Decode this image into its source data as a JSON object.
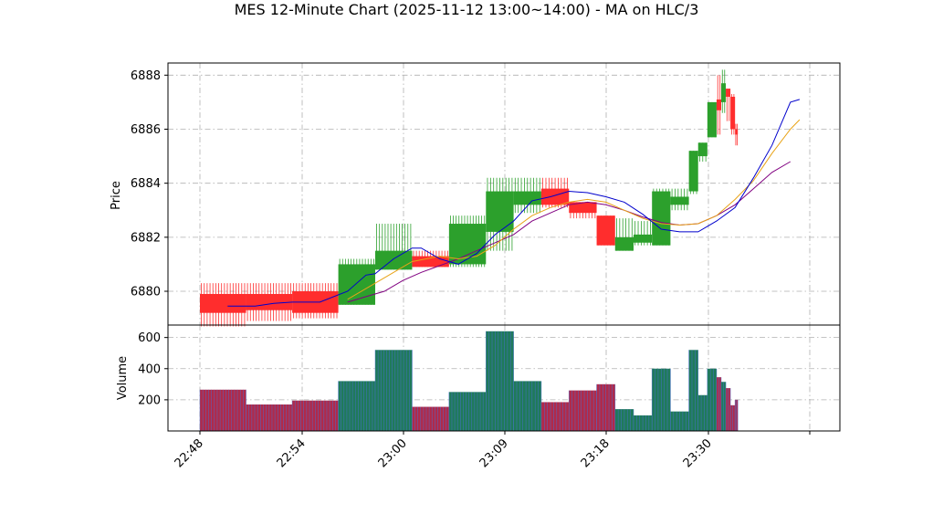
{
  "chart_data": {
    "type": "candlestick",
    "title": "MES 12-Minute Chart (2025-11-12 13:00~14:00) - MA on HLC/3",
    "price_panel": {
      "ylabel": "Price",
      "ylim": [
        6878.75,
        6888.45
      ],
      "yticks": [
        "6880",
        "6882",
        "6884",
        "6886",
        "6888"
      ],
      "grid": true
    },
    "volume_panel": {
      "ylabel": "Volume",
      "ylim": [
        0,
        680
      ],
      "yticks": [
        "200",
        "400",
        "600"
      ],
      "grid": true
    },
    "x_ticks": [
      "22:48",
      "22:54",
      "23:00",
      "23:09",
      "23:18",
      "23:30",
      ""
    ],
    "colors": {
      "up": "#2ca02c",
      "down": "#ff2d2d",
      "ma_fast": "#0000cc",
      "ma_mid": "#e8a317",
      "ma_slow": "#800080",
      "volume_up": "#1f7a5a",
      "volume_down": "#b02a4a"
    },
    "bars": [
      {
        "t": 0,
        "w": 5,
        "open": 6879.9,
        "high": 6880.3,
        "low": 6878.7,
        "close": 6879.2,
        "volume": 265
      },
      {
        "t": 5,
        "w": 5,
        "open": 6879.9,
        "high": 6880.3,
        "low": 6878.9,
        "close": 6879.3,
        "volume": 170
      },
      {
        "t": 10,
        "w": 5,
        "open": 6880.0,
        "high": 6880.3,
        "low": 6879.0,
        "close": 6879.2,
        "volume": 195
      },
      {
        "t": 15,
        "w": 4,
        "open": 6879.5,
        "high": 6881.2,
        "low": 6879.5,
        "close": 6881.0,
        "volume": 320
      },
      {
        "t": 19,
        "w": 4,
        "open": 6880.8,
        "high": 6882.5,
        "low": 6880.8,
        "close": 6881.5,
        "volume": 520
      },
      {
        "t": 23,
        "w": 4,
        "open": 6881.3,
        "high": 6881.5,
        "low": 6880.9,
        "close": 6880.9,
        "volume": 155
      },
      {
        "t": 27,
        "w": 4,
        "open": 6881.0,
        "high": 6882.8,
        "low": 6880.9,
        "close": 6882.5,
        "volume": 250
      },
      {
        "t": 31,
        "w": 3,
        "open": 6882.2,
        "high": 6884.2,
        "low": 6881.5,
        "close": 6883.7,
        "volume": 640
      },
      {
        "t": 34,
        "w": 3,
        "open": 6883.2,
        "high": 6884.2,
        "low": 6882.9,
        "close": 6883.7,
        "volume": 320
      },
      {
        "t": 37,
        "w": 3,
        "open": 6883.8,
        "high": 6884.2,
        "low": 6883.1,
        "close": 6883.2,
        "volume": 185
      },
      {
        "t": 40,
        "w": 3,
        "open": 6883.3,
        "high": 6883.3,
        "low": 6882.7,
        "close": 6882.9,
        "volume": 260
      },
      {
        "t": 43,
        "w": 2,
        "open": 6882.8,
        "high": 6882.8,
        "low": 6881.7,
        "close": 6881.7,
        "volume": 300
      },
      {
        "t": 45,
        "w": 2,
        "open": 6881.5,
        "high": 6882.7,
        "low": 6881.5,
        "close": 6882.0,
        "volume": 140
      },
      {
        "t": 47,
        "w": 2,
        "open": 6881.8,
        "high": 6882.6,
        "low": 6881.7,
        "close": 6882.1,
        "volume": 100
      },
      {
        "t": 49,
        "w": 2,
        "open": 6881.7,
        "high": 6883.8,
        "low": 6881.7,
        "close": 6883.7,
        "volume": 400
      },
      {
        "t": 51,
        "w": 2,
        "open": 6883.2,
        "high": 6883.8,
        "low": 6883.0,
        "close": 6883.5,
        "volume": 125
      },
      {
        "t": 53,
        "w": 1,
        "open": 6883.7,
        "high": 6885.2,
        "low": 6883.6,
        "close": 6885.2,
        "volume": 520
      },
      {
        "t": 54,
        "w": 1,
        "open": 6885.0,
        "high": 6885.5,
        "low": 6884.8,
        "close": 6885.5,
        "volume": 230
      },
      {
        "t": 55,
        "w": 1,
        "open": 6885.7,
        "high": 6887.0,
        "low": 6885.7,
        "close": 6887.0,
        "volume": 400
      },
      {
        "t": 56,
        "w": 0.5,
        "open": 6887.1,
        "high": 6888.0,
        "low": 6885.8,
        "close": 6886.7,
        "volume": 345
      },
      {
        "t": 56.5,
        "w": 0.5,
        "open": 6887.0,
        "high": 6888.2,
        "low": 6886.6,
        "close": 6887.7,
        "volume": 315
      },
      {
        "t": 57,
        "w": 0.5,
        "open": 6887.5,
        "high": 6887.5,
        "low": 6886.3,
        "close": 6887.2,
        "volume": 275
      },
      {
        "t": 57.5,
        "w": 0.5,
        "open": 6887.2,
        "high": 6887.3,
        "low": 6885.8,
        "close": 6886.0,
        "volume": 165
      },
      {
        "t": 58,
        "w": 0.3,
        "open": 6886.0,
        "high": 6886.2,
        "low": 6885.4,
        "close": 6885.8,
        "volume": 200
      }
    ],
    "ma_fast": [
      [
        3,
        6879.45
      ],
      [
        6,
        6879.45
      ],
      [
        8,
        6879.55
      ],
      [
        10,
        6879.6
      ],
      [
        13,
        6879.6
      ],
      [
        16,
        6880.0
      ],
      [
        18,
        6880.6
      ],
      [
        19,
        6880.65
      ],
      [
        21,
        6881.2
      ],
      [
        23,
        6881.6
      ],
      [
        24,
        6881.6
      ],
      [
        26,
        6881.2
      ],
      [
        28,
        6881.0
      ],
      [
        30,
        6881.4
      ],
      [
        32,
        6882.1
      ],
      [
        34,
        6882.6
      ],
      [
        36,
        6883.35
      ],
      [
        38,
        6883.5
      ],
      [
        40,
        6883.7
      ],
      [
        42,
        6883.65
      ],
      [
        44,
        6883.5
      ],
      [
        46,
        6883.3
      ],
      [
        48,
        6882.85
      ],
      [
        50,
        6882.3
      ],
      [
        52,
        6882.2
      ],
      [
        54,
        6882.2
      ],
      [
        56,
        6882.6
      ],
      [
        58,
        6883.1
      ],
      [
        60,
        6884.2
      ],
      [
        62,
        6885.4
      ],
      [
        63,
        6886.2
      ],
      [
        64,
        6887.0
      ],
      [
        65,
        6887.1
      ]
    ],
    "ma_mid": [
      [
        16,
        6879.7
      ],
      [
        18,
        6880.1
      ],
      [
        21,
        6880.7
      ],
      [
        23,
        6881.1
      ],
      [
        26,
        6881.3
      ],
      [
        28,
        6881.2
      ],
      [
        30,
        6881.3
      ],
      [
        32,
        6881.7
      ],
      [
        34,
        6882.3
      ],
      [
        36,
        6882.8
      ],
      [
        38,
        6883.1
      ],
      [
        40,
        6883.3
      ],
      [
        42,
        6883.4
      ],
      [
        44,
        6883.3
      ],
      [
        46,
        6883.0
      ],
      [
        48,
        6882.7
      ],
      [
        50,
        6882.5
      ],
      [
        52,
        6882.45
      ],
      [
        54,
        6882.5
      ],
      [
        56,
        6882.8
      ],
      [
        58,
        6883.4
      ],
      [
        60,
        6884.1
      ],
      [
        62,
        6885.1
      ],
      [
        64,
        6886.0
      ],
      [
        65,
        6886.35
      ]
    ],
    "ma_slow": [
      [
        16,
        6879.6
      ],
      [
        18,
        6879.8
      ],
      [
        20,
        6880.0
      ],
      [
        22,
        6880.4
      ],
      [
        24,
        6880.7
      ],
      [
        26,
        6880.95
      ],
      [
        28,
        6881.2
      ],
      [
        30,
        6881.5
      ],
      [
        32,
        6881.8
      ],
      [
        34,
        6882.1
      ],
      [
        36,
        6882.6
      ],
      [
        38,
        6882.9
      ],
      [
        40,
        6883.2
      ],
      [
        42,
        6883.3
      ],
      [
        44,
        6883.2
      ],
      [
        46,
        6883.0
      ],
      [
        48,
        6882.75
      ],
      [
        50,
        6882.55
      ],
      [
        52,
        6882.45
      ],
      [
        54,
        6882.5
      ],
      [
        56,
        6882.8
      ],
      [
        58,
        6883.2
      ],
      [
        60,
        6883.8
      ],
      [
        62,
        6884.4
      ],
      [
        64,
        6884.8
      ]
    ]
  }
}
